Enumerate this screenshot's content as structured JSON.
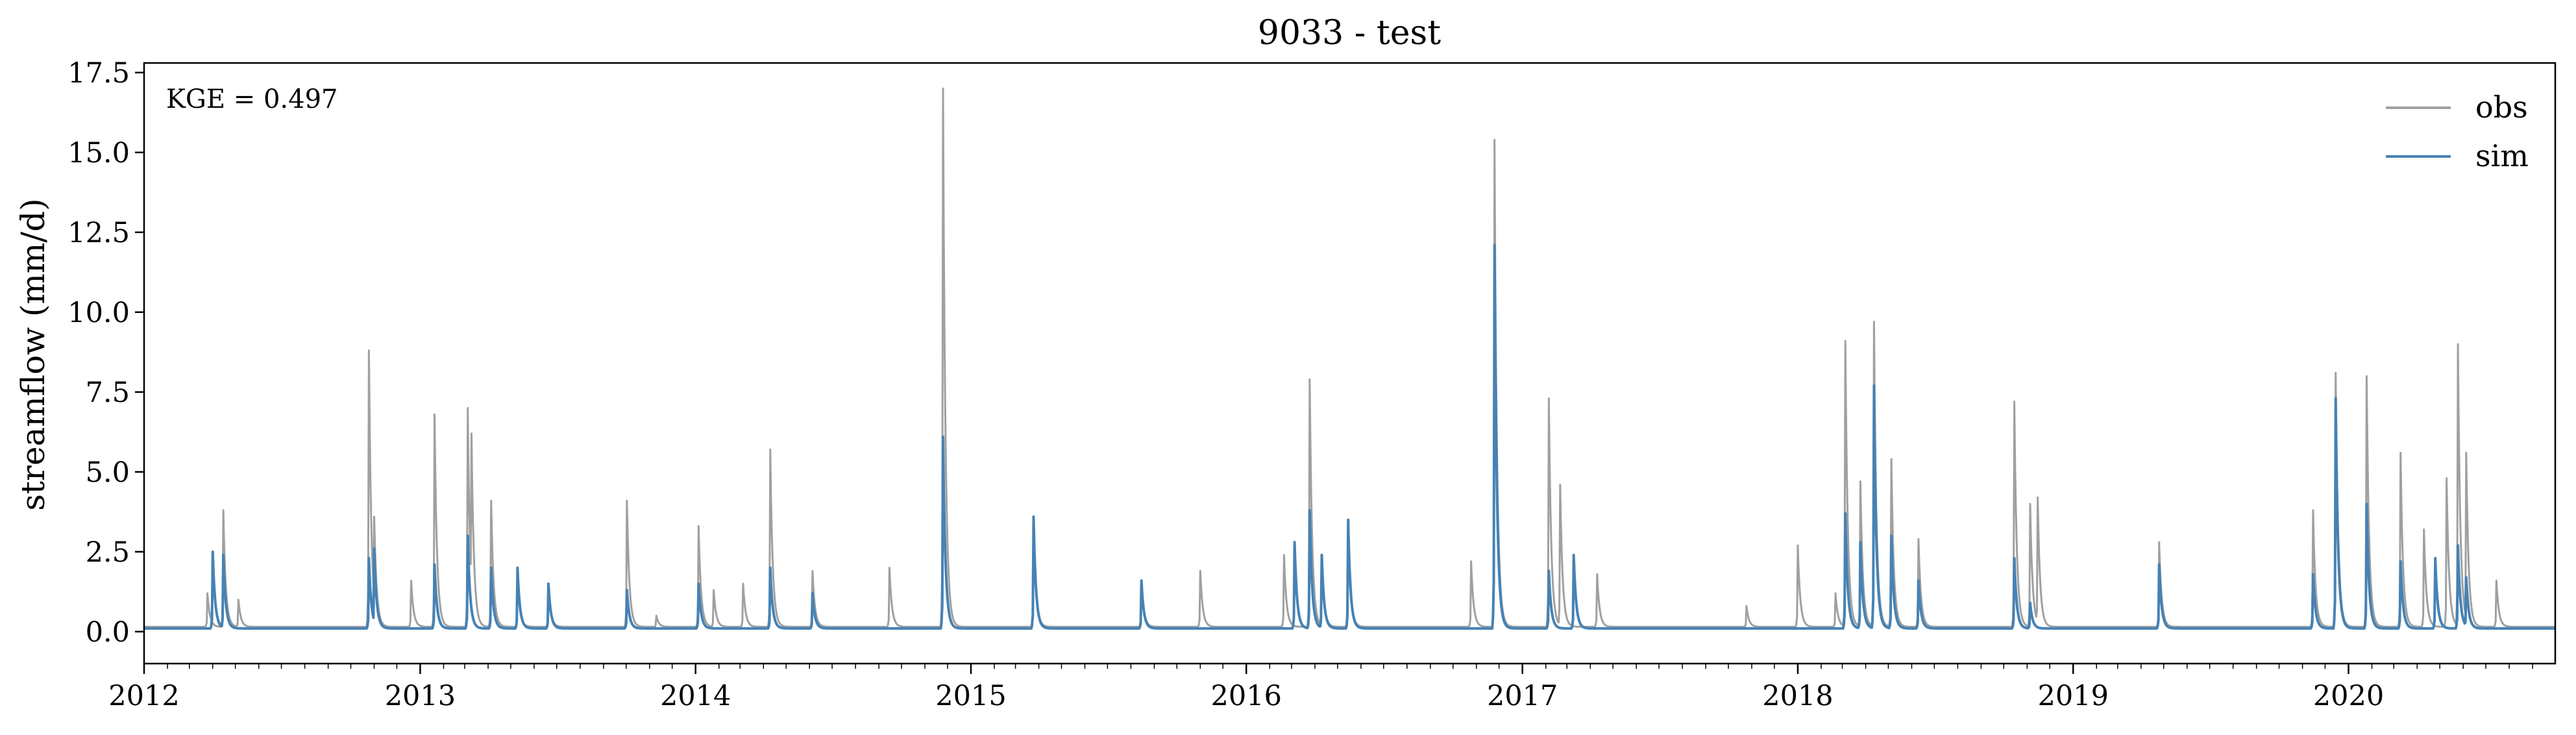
{
  "chart_data": {
    "type": "line",
    "title": "9033 - test",
    "xlabel": "",
    "ylabel": "streamflow (mm/d)",
    "annotation": "KGE = 0.497",
    "x_range": [
      "2012-01-01",
      "2020-10-01"
    ],
    "ylim": [
      -1.0,
      17.8
    ],
    "x_ticks": [
      "2012",
      "2013",
      "2014",
      "2015",
      "2016",
      "2017",
      "2018",
      "2019",
      "2020"
    ],
    "y_ticks": [
      "0.0",
      "2.5",
      "5.0",
      "7.5",
      "10.0",
      "12.5",
      "15.0",
      "17.5"
    ],
    "grid": false,
    "legend_position": "top-right",
    "baseline": {
      "obs": 0.15,
      "sim": 0.1
    },
    "series": [
      {
        "name": "obs",
        "color": "#a0a0a0",
        "peaks": [
          [
            "2012-04-15",
            3.8
          ],
          [
            "2012-03-25",
            1.2
          ],
          [
            "2012-05-05",
            1.0
          ],
          [
            "2012-10-25",
            8.8
          ],
          [
            "2012-11-01",
            3.6
          ],
          [
            "2012-12-20",
            1.6
          ],
          [
            "2013-01-20",
            6.8
          ],
          [
            "2013-03-05",
            7.0
          ],
          [
            "2013-03-10",
            6.2
          ],
          [
            "2013-04-05",
            4.1
          ],
          [
            "2013-05-10",
            1.6
          ],
          [
            "2013-06-20",
            1.4
          ],
          [
            "2013-10-02",
            4.1
          ],
          [
            "2013-11-10",
            0.5
          ],
          [
            "2014-01-05",
            3.3
          ],
          [
            "2014-01-25",
            1.3
          ],
          [
            "2014-03-05",
            1.5
          ],
          [
            "2014-04-10",
            5.7
          ],
          [
            "2014-06-05",
            1.9
          ],
          [
            "2014-09-15",
            2.0
          ],
          [
            "2014-11-25",
            17.0
          ],
          [
            "2015-03-25",
            3.5
          ],
          [
            "2015-08-15",
            1.6
          ],
          [
            "2015-11-01",
            1.9
          ],
          [
            "2016-02-20",
            2.4
          ],
          [
            "2016-03-25",
            7.9
          ],
          [
            "2016-04-10",
            2.3
          ],
          [
            "2016-05-15",
            3.5
          ],
          [
            "2016-10-25",
            2.2
          ],
          [
            "2016-11-25",
            15.4
          ],
          [
            "2017-02-05",
            7.3
          ],
          [
            "2017-02-20",
            4.6
          ],
          [
            "2017-04-10",
            1.8
          ],
          [
            "2017-10-25",
            0.8
          ],
          [
            "2018-01-01",
            2.7
          ],
          [
            "2018-02-20",
            1.2
          ],
          [
            "2018-03-05",
            9.1
          ],
          [
            "2018-03-25",
            4.7
          ],
          [
            "2018-04-12",
            9.7
          ],
          [
            "2018-05-05",
            5.4
          ],
          [
            "2018-06-10",
            2.9
          ],
          [
            "2018-10-15",
            7.2
          ],
          [
            "2018-11-05",
            4.0
          ],
          [
            "2018-11-15",
            4.2
          ],
          [
            "2019-04-25",
            2.8
          ],
          [
            "2019-11-15",
            3.8
          ],
          [
            "2019-12-15",
            8.1
          ],
          [
            "2020-01-25",
            8.0
          ],
          [
            "2020-03-10",
            5.6
          ],
          [
            "2020-04-10",
            3.2
          ],
          [
            "2020-05-10",
            4.8
          ],
          [
            "2020-05-25",
            9.0
          ],
          [
            "2020-06-05",
            5.6
          ],
          [
            "2020-07-15",
            1.6
          ]
        ]
      },
      {
        "name": "sim",
        "color": "#4682b4",
        "peaks": [
          [
            "2012-04-01",
            2.5
          ],
          [
            "2012-04-15",
            2.4
          ],
          [
            "2012-10-25",
            2.3
          ],
          [
            "2012-11-01",
            2.6
          ],
          [
            "2013-01-20",
            2.1
          ],
          [
            "2013-03-05",
            3.0
          ],
          [
            "2013-04-05",
            2.0
          ],
          [
            "2013-05-10",
            2.0
          ],
          [
            "2013-06-20",
            1.5
          ],
          [
            "2013-10-02",
            1.3
          ],
          [
            "2014-01-05",
            1.5
          ],
          [
            "2014-04-10",
            2.0
          ],
          [
            "2014-06-05",
            1.2
          ],
          [
            "2014-11-25",
            6.1
          ],
          [
            "2015-03-25",
            3.6
          ],
          [
            "2015-08-15",
            1.6
          ],
          [
            "2016-03-05",
            2.8
          ],
          [
            "2016-03-25",
            3.8
          ],
          [
            "2016-04-10",
            2.4
          ],
          [
            "2016-05-15",
            3.5
          ],
          [
            "2016-11-25",
            12.1
          ],
          [
            "2017-02-05",
            1.9
          ],
          [
            "2017-03-10",
            2.4
          ],
          [
            "2018-03-05",
            3.7
          ],
          [
            "2018-03-25",
            2.8
          ],
          [
            "2018-04-12",
            7.7
          ],
          [
            "2018-05-05",
            3.0
          ],
          [
            "2018-06-10",
            1.6
          ],
          [
            "2018-10-15",
            2.3
          ],
          [
            "2018-11-05",
            0.9
          ],
          [
            "2019-04-25",
            2.1
          ],
          [
            "2019-11-15",
            1.8
          ],
          [
            "2019-12-15",
            7.3
          ],
          [
            "2020-01-25",
            4.0
          ],
          [
            "2020-03-10",
            2.2
          ],
          [
            "2020-04-25",
            2.3
          ],
          [
            "2020-05-25",
            2.7
          ],
          [
            "2020-06-05",
            1.7
          ]
        ]
      }
    ]
  }
}
